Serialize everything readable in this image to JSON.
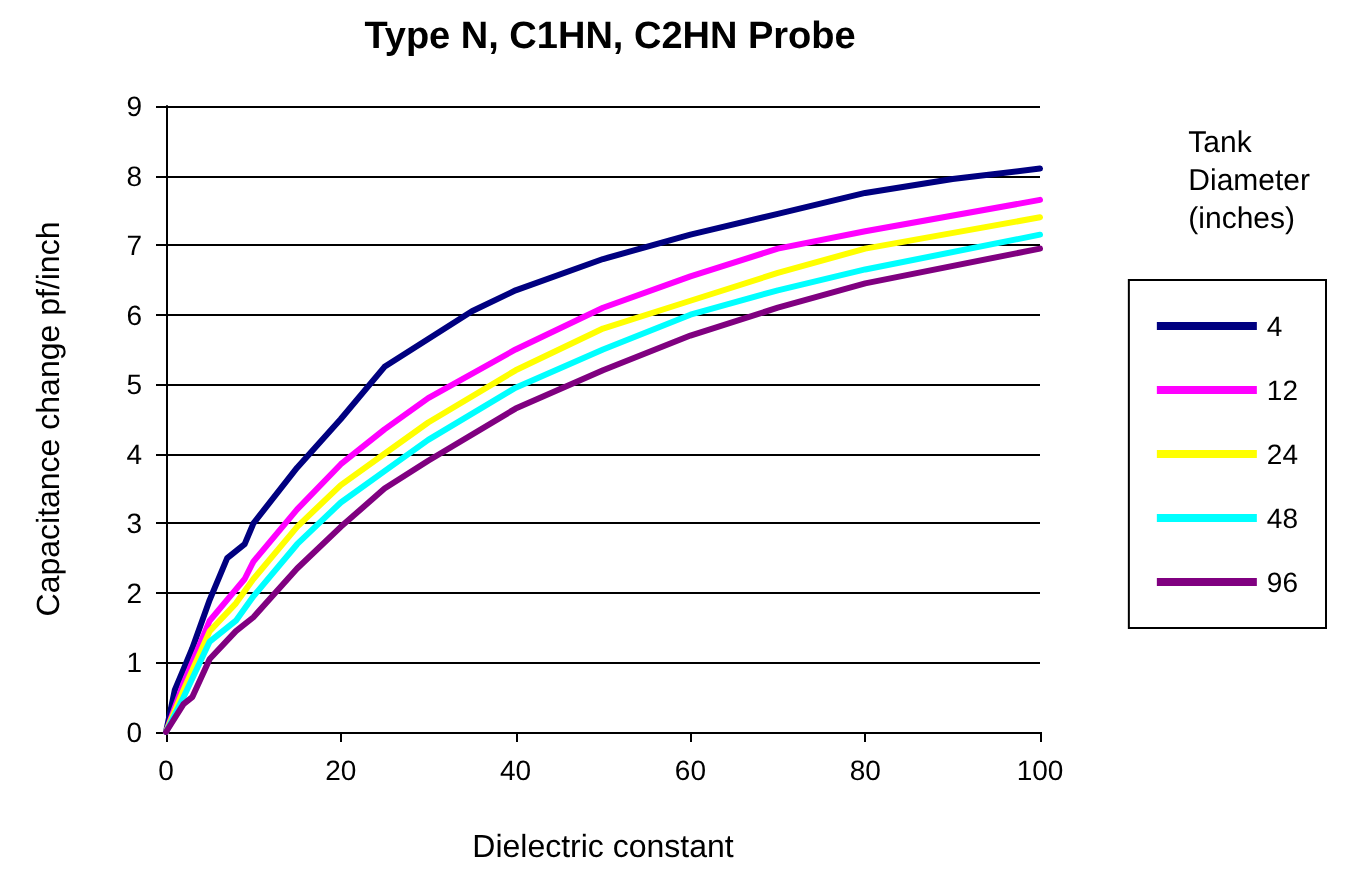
{
  "chart_data": {
    "type": "line",
    "title": "Type N, C1HN, C2HN Probe",
    "xlabel": "Dielectric constant",
    "ylabel": "Capacitance change pf/inch",
    "legend_title": "Tank Diameter (inches)",
    "xlim": [
      0,
      100
    ],
    "xticks": [
      0,
      20,
      40,
      60,
      80,
      100
    ],
    "ylim": [
      0,
      9
    ],
    "yticks": [
      0,
      1,
      2,
      3,
      4,
      5,
      6,
      7,
      8,
      9
    ],
    "grid": "y",
    "legend": "right",
    "marker": "none",
    "line_style": "solid",
    "series": [
      {
        "name": "4",
        "color": "#000080",
        "x": [
          0,
          1,
          2,
          3,
          5,
          7,
          8,
          9,
          10,
          15,
          20,
          25,
          30,
          35,
          40,
          50,
          60,
          70,
          80,
          90,
          100
        ],
        "values": [
          0,
          0.6,
          0.9,
          1.2,
          1.9,
          2.5,
          2.6,
          2.7,
          3.0,
          3.8,
          4.5,
          5.25,
          5.65,
          6.05,
          6.35,
          6.8,
          7.15,
          7.45,
          7.75,
          7.95,
          8.1
        ]
      },
      {
        "name": "12",
        "color": "#ff00ff",
        "x": [
          0,
          2,
          5,
          8,
          9,
          10,
          15,
          20,
          25,
          30,
          40,
          50,
          60,
          70,
          80,
          100
        ],
        "values": [
          0,
          0.7,
          1.6,
          2.05,
          2.2,
          2.45,
          3.2,
          3.85,
          4.35,
          4.8,
          5.5,
          6.1,
          6.55,
          6.95,
          7.2,
          7.65
        ]
      },
      {
        "name": "24",
        "color": "#ffff00",
        "x": [
          0,
          2,
          5,
          8,
          10,
          15,
          20,
          25,
          30,
          40,
          50,
          60,
          70,
          80,
          100
        ],
        "values": [
          0,
          0.6,
          1.45,
          1.85,
          2.2,
          2.95,
          3.55,
          4.0,
          4.45,
          5.2,
          5.8,
          6.2,
          6.6,
          6.95,
          7.4
        ]
      },
      {
        "name": "48",
        "color": "#00ffff",
        "x": [
          0,
          2,
          5,
          8,
          10,
          15,
          20,
          25,
          30,
          40,
          50,
          60,
          70,
          80,
          100
        ],
        "values": [
          0,
          0.5,
          1.3,
          1.6,
          1.95,
          2.7,
          3.3,
          3.75,
          4.2,
          4.95,
          5.5,
          6.0,
          6.35,
          6.65,
          7.15
        ]
      },
      {
        "name": "96",
        "color": "#800080",
        "x": [
          0,
          2,
          3,
          5,
          8,
          10,
          15,
          20,
          25,
          30,
          40,
          50,
          60,
          70,
          80,
          100
        ],
        "values": [
          0,
          0.4,
          0.5,
          1.05,
          1.45,
          1.65,
          2.35,
          2.95,
          3.5,
          3.9,
          4.65,
          5.2,
          5.7,
          6.1,
          6.45,
          6.95
        ]
      }
    ]
  }
}
